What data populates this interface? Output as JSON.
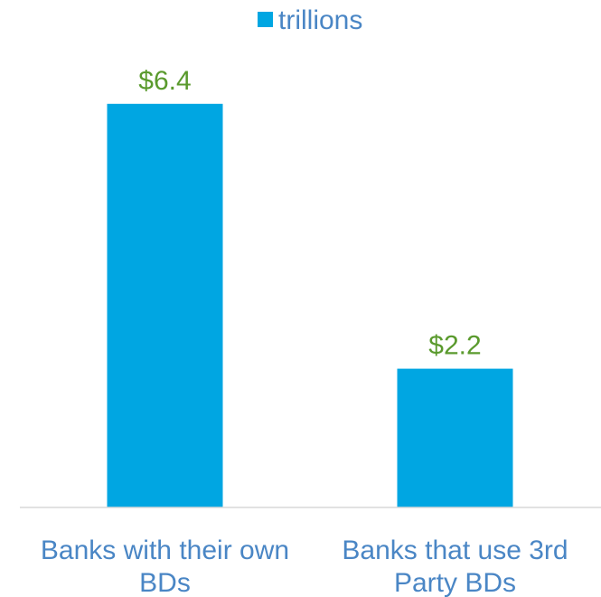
{
  "chart_data": {
    "type": "bar",
    "categories": [
      "Banks with their own BDs",
      "Banks that use 3rd Party BDs"
    ],
    "category_lines": [
      [
        "Banks with their own",
        "BDs"
      ],
      [
        "Banks that use 3rd",
        "Party BDs"
      ]
    ],
    "series": [
      {
        "name": "trillions",
        "values": [
          6.4,
          2.2
        ]
      }
    ],
    "data_labels": [
      "$6.4",
      "$2.2"
    ],
    "ylim": [
      0,
      7.3
    ],
    "legend_position": "top-center",
    "grid": false,
    "title": "",
    "xlabel": "",
    "ylabel": ""
  },
  "colors": {
    "bar": "#00A6E2",
    "data_label": "#5A9A2D",
    "category_label": "#4A86C5",
    "legend_text": "#4A86C5",
    "axis_line": "#D9D9D9"
  }
}
